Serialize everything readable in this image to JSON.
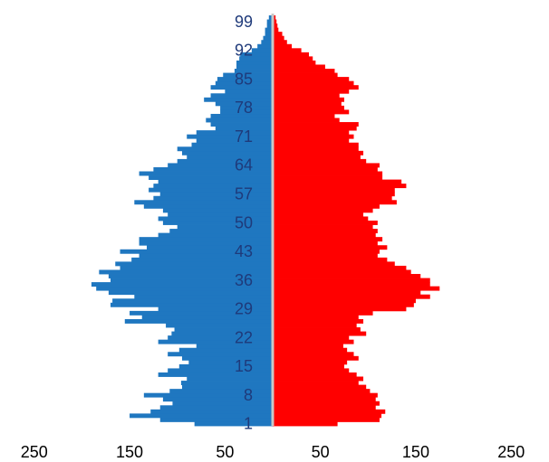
{
  "chart_data": {
    "type": "bar",
    "orientation": "horizontal",
    "subtype": "population-pyramid",
    "title": "",
    "xlabel": "",
    "ylabel": "",
    "x_tick_labels": [
      "250",
      "150",
      "50",
      "50",
      "150",
      "250"
    ],
    "y_tick_labels": [
      "1",
      "8",
      "15",
      "22",
      "29",
      "36",
      "43",
      "50",
      "57",
      "64",
      "71",
      "78",
      "85",
      "92",
      "99"
    ],
    "xlim": [
      -250,
      250
    ],
    "grid": false,
    "legend": "none",
    "colors": {
      "left": "#1f77c0",
      "right": "#ff0000",
      "center_line": "#c8c8c8",
      "age_labels": "#1f3a7a"
    },
    "ages": [
      1,
      2,
      3,
      4,
      5,
      6,
      7,
      8,
      9,
      10,
      11,
      12,
      13,
      14,
      15,
      16,
      17,
      18,
      19,
      20,
      21,
      22,
      23,
      24,
      25,
      26,
      27,
      28,
      29,
      30,
      31,
      32,
      33,
      34,
      35,
      36,
      37,
      38,
      39,
      40,
      41,
      42,
      43,
      44,
      45,
      46,
      47,
      48,
      49,
      50,
      51,
      52,
      53,
      54,
      55,
      56,
      57,
      58,
      59,
      60,
      61,
      62,
      63,
      64,
      65,
      66,
      67,
      68,
      69,
      70,
      71,
      72,
      73,
      74,
      75,
      76,
      77,
      78,
      79,
      80,
      81,
      82,
      83,
      84,
      85,
      86,
      87,
      88,
      89,
      90,
      91,
      92,
      93,
      94,
      95,
      96,
      97,
      98,
      99,
      100
    ],
    "series": [
      {
        "side": "left",
        "values": [
          82,
          118,
          150,
          128,
          118,
          105,
          115,
          135,
          108,
          95,
          96,
          90,
          120,
          110,
          98,
          88,
          95,
          110,
          98,
          80,
          120,
          110,
          106,
          103,
          112,
          155,
          137,
          150,
          120,
          170,
          168,
          145,
          172,
          185,
          190,
          170,
          172,
          182,
          160,
          165,
          148,
          140,
          160,
          132,
          140,
          140,
          120,
          108,
          100,
          115,
          120,
          110,
          115,
          135,
          145,
          125,
          118,
          130,
          125,
          120,
          130,
          140,
          125,
          110,
          100,
          90,
          95,
          100,
          85,
          80,
          90,
          80,
          60,
          65,
          70,
          65,
          55,
          55,
          60,
          72,
          65,
          50,
          65,
          60,
          58,
          52,
          40,
          38,
          38,
          35,
          34,
          22,
          16,
          12,
          10,
          8,
          8,
          6,
          6,
          4
        ]
      },
      {
        "side": "right",
        "values": [
          68,
          112,
          114,
          118,
          108,
          112,
          108,
          110,
          102,
          98,
          90,
          95,
          88,
          80,
          75,
          78,
          90,
          85,
          78,
          74,
          85,
          80,
          98,
          92,
          88,
          95,
          90,
          105,
          140,
          148,
          150,
          165,
          155,
          175,
          165,
          165,
          155,
          145,
          140,
          128,
          120,
          110,
          112,
          120,
          110,
          115,
          108,
          110,
          105,
          110,
          100,
          95,
          105,
          112,
          130,
          125,
          128,
          128,
          140,
          135,
          115,
          115,
          110,
          112,
          98,
          92,
          95,
          90,
          90,
          80,
          85,
          80,
          88,
          90,
          70,
          65,
          80,
          75,
          72,
          75,
          70,
          80,
          90,
          85,
          80,
          68,
          65,
          55,
          45,
          42,
          38,
          30,
          20,
          15,
          12,
          10,
          6,
          5,
          4,
          3
        ]
      }
    ]
  }
}
